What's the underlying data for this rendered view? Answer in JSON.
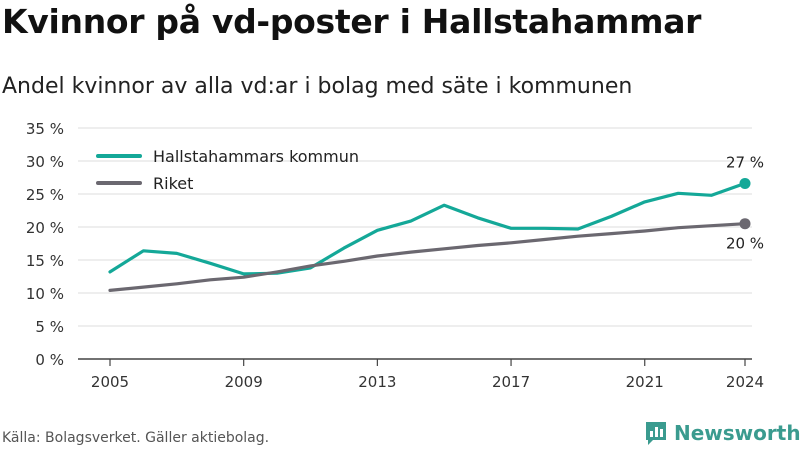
{
  "header": {
    "title": "Kvinnor på vd-poster i Hallstahammar",
    "subtitle": "Andel kvinnor av alla vd:ar i bolag med säte i kommunen"
  },
  "footer": {
    "source": "Källa: Bolagsverket. Gäller aktiebolag.",
    "brand": "Newsworthy",
    "brand_icon": "bar-chart-logo-icon"
  },
  "colors": {
    "series_1": "#14a898",
    "series_2": "#6b6870",
    "brand": "#3a9b8f",
    "grid": "#dddddd"
  },
  "chart_data": {
    "type": "line",
    "title": "Kvinnor på vd-poster i Hallstahammar",
    "subtitle": "Andel kvinnor av alla vd:ar i bolag med säte i kommunen",
    "x": [
      2005,
      2006,
      2007,
      2008,
      2009,
      2010,
      2011,
      2012,
      2013,
      2014,
      2015,
      2016,
      2017,
      2018,
      2019,
      2020,
      2021,
      2022,
      2023,
      2024
    ],
    "x_ticks": [
      "2005",
      "2009",
      "2013",
      "2017",
      "2021",
      "2024"
    ],
    "y_ticks": [
      "0 %",
      "5 %",
      "10 %",
      "15 %",
      "20 %",
      "25 %",
      "30 %",
      "35 %"
    ],
    "ylim": [
      0,
      35
    ],
    "grid": true,
    "legend_position": "top-left",
    "series": [
      {
        "name": "Hallstahammars kommun",
        "color": "#14a898",
        "values": [
          13.2,
          16.4,
          16.0,
          14.5,
          12.9,
          13.0,
          13.8,
          16.8,
          19.5,
          20.9,
          23.3,
          21.4,
          19.8,
          19.8,
          19.7,
          21.6,
          23.8,
          25.1,
          24.8,
          26.6
        ],
        "end_label": "27 %"
      },
      {
        "name": "Riket",
        "color": "#6b6870",
        "values": [
          10.4,
          10.9,
          11.4,
          12.0,
          12.4,
          13.2,
          14.1,
          14.8,
          15.6,
          16.2,
          16.7,
          17.2,
          17.6,
          18.1,
          18.6,
          19.0,
          19.4,
          19.9,
          20.2,
          20.5
        ],
        "end_label": "20 %"
      }
    ]
  }
}
